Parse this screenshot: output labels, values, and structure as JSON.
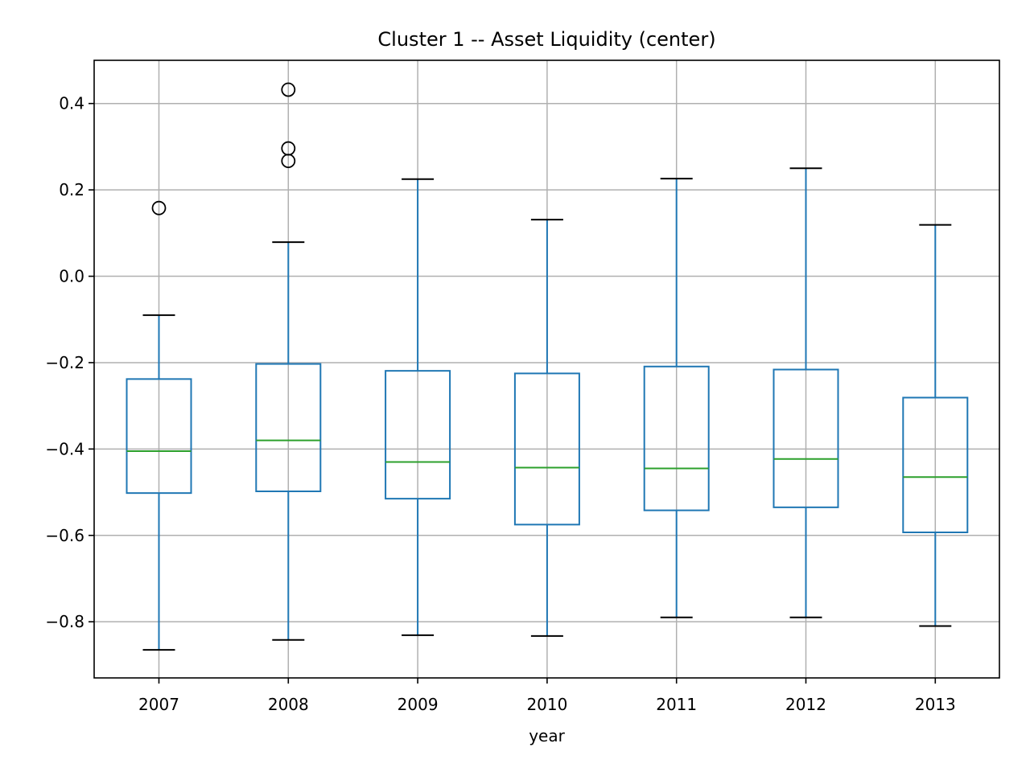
{
  "chart_data": {
    "type": "box",
    "title": "Cluster 1 -- Asset Liquidity (center)",
    "xlabel": "year",
    "ylabel": "",
    "ylim": [
      -0.93,
      0.5
    ],
    "yticks": [
      -0.8,
      -0.6,
      -0.4,
      -0.2,
      0.0,
      0.2,
      0.4
    ],
    "ytick_labels": [
      "−0.8",
      "−0.6",
      "−0.4",
      "−0.2",
      "0.0",
      "0.2",
      "0.4"
    ],
    "grid": true,
    "categories": [
      "2007",
      "2008",
      "2009",
      "2010",
      "2011",
      "2012",
      "2013"
    ],
    "boxes": [
      {
        "category": "2007",
        "whisker_low": -0.865,
        "q1": -0.502,
        "median": -0.405,
        "q3": -0.238,
        "whisker_high": -0.09,
        "outliers": [
          0.158
        ]
      },
      {
        "category": "2008",
        "whisker_low": -0.842,
        "q1": -0.498,
        "median": -0.38,
        "q3": -0.203,
        "whisker_high": 0.079,
        "outliers": [
          0.432,
          0.296,
          0.267
        ]
      },
      {
        "category": "2009",
        "whisker_low": -0.831,
        "q1": -0.515,
        "median": -0.43,
        "q3": -0.219,
        "whisker_high": 0.225,
        "outliers": []
      },
      {
        "category": "2010",
        "whisker_low": -0.833,
        "q1": -0.575,
        "median": -0.443,
        "q3": -0.225,
        "whisker_high": 0.131,
        "outliers": []
      },
      {
        "category": "2011",
        "whisker_low": -0.79,
        "q1": -0.542,
        "median": -0.445,
        "q3": -0.209,
        "whisker_high": 0.226,
        "outliers": []
      },
      {
        "category": "2012",
        "whisker_low": -0.79,
        "q1": -0.535,
        "median": -0.423,
        "q3": -0.216,
        "whisker_high": 0.25,
        "outliers": []
      },
      {
        "category": "2013",
        "whisker_low": -0.81,
        "q1": -0.593,
        "median": -0.465,
        "q3": -0.281,
        "whisker_high": 0.119,
        "outliers": []
      }
    ],
    "colors": {
      "box": "#1f77b4",
      "median": "#2ca02c",
      "cap": "#000000",
      "outlier": "#000000",
      "grid": "#b0b0b0",
      "axis": "#000000"
    }
  }
}
